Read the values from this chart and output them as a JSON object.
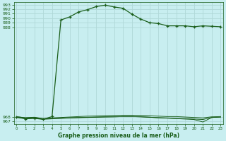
{
  "title": "Graphe pression niveau de la mer (hPa)",
  "bg_color": "#c8eef0",
  "grid_color": "#b0d8d8",
  "line_color": "#1a5e1a",
  "xlim": [
    -0.3,
    23.3
  ],
  "ylim": [
    966.5,
    993.5
  ],
  "yticks": [
    967,
    968,
    988,
    989,
    990,
    991,
    992,
    993
  ],
  "xticks": [
    0,
    1,
    2,
    3,
    4,
    5,
    6,
    7,
    8,
    9,
    10,
    11,
    12,
    13,
    14,
    15,
    16,
    17,
    18,
    19,
    20,
    21,
    22,
    23
  ],
  "line1_x": [
    0,
    1,
    2,
    3,
    4,
    5,
    6,
    7,
    8,
    9,
    10,
    11,
    12,
    13,
    14,
    15,
    16,
    17,
    18,
    19,
    20,
    21,
    22,
    23
  ],
  "line1_y": [
    968.0,
    967.6,
    967.7,
    967.5,
    968.1,
    989.6,
    990.3,
    991.4,
    991.9,
    992.6,
    992.9,
    992.5,
    992.2,
    990.9,
    989.8,
    989.0,
    988.8,
    988.3,
    988.3,
    988.3,
    988.1,
    988.3,
    988.2,
    988.1
  ],
  "line2_x": [
    0,
    1,
    2,
    3,
    4,
    5,
    6,
    7,
    8,
    9,
    10,
    11,
    12,
    13,
    14,
    15,
    16,
    17,
    18,
    19,
    20,
    21,
    22,
    23
  ],
  "line2_y": [
    968.1,
    967.8,
    967.9,
    967.6,
    967.8,
    967.9,
    968.0,
    968.1,
    968.2,
    968.25,
    968.3,
    968.35,
    968.4,
    968.4,
    968.35,
    968.3,
    968.2,
    968.1,
    968.1,
    968.0,
    967.9,
    967.8,
    968.05,
    968.1
  ],
  "line3_x": [
    0,
    1,
    2,
    3,
    4,
    5,
    6,
    7,
    8,
    9,
    10,
    11,
    12,
    13,
    14,
    15,
    16,
    17,
    18,
    19,
    20,
    21,
    22,
    23
  ],
  "line3_y": [
    967.9,
    967.7,
    967.8,
    967.5,
    967.6,
    967.7,
    967.8,
    967.85,
    967.9,
    967.95,
    968.0,
    968.05,
    968.1,
    968.1,
    968.05,
    967.95,
    967.85,
    967.8,
    967.7,
    967.65,
    967.55,
    967.45,
    967.9,
    968.0
  ],
  "line4_x": [
    0,
    1,
    2,
    3,
    4,
    5,
    6,
    7,
    8,
    9,
    10,
    11,
    12,
    13,
    14,
    15,
    16,
    17,
    18,
    19,
    20,
    21,
    22,
    23
  ],
  "line4_y": [
    968.05,
    967.85,
    967.95,
    967.65,
    967.65,
    967.75,
    967.85,
    967.9,
    967.95,
    968.0,
    968.05,
    968.05,
    968.1,
    968.1,
    968.05,
    967.95,
    967.85,
    967.75,
    967.65,
    967.55,
    967.45,
    966.9,
    967.9,
    968.0
  ]
}
